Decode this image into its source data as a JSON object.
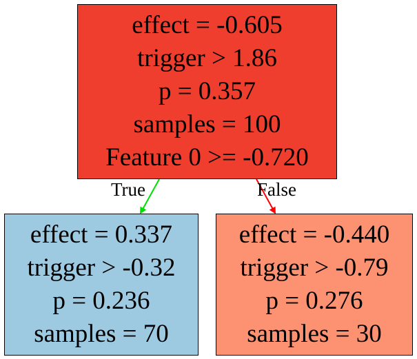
{
  "colors": {
    "root_fill": "#f03e2e",
    "left_fill": "#9ecae1",
    "right_fill": "#fc9272",
    "true_edge": "#00e000",
    "false_edge": "#ff0000"
  },
  "tree": {
    "root": {
      "lines": [
        "effect = -0.605",
        "trigger > 1.86",
        "p = 0.357",
        "samples = 100",
        "Feature 0 >= -0.720"
      ]
    },
    "left": {
      "lines": [
        "effect = 0.337",
        "trigger > -0.32",
        "p = 0.236",
        "samples = 70"
      ]
    },
    "right": {
      "lines": [
        "effect = -0.440",
        "trigger > -0.79",
        "p = 0.276",
        "samples = 30"
      ]
    },
    "edges": {
      "true_label": "True",
      "false_label": "False"
    }
  }
}
